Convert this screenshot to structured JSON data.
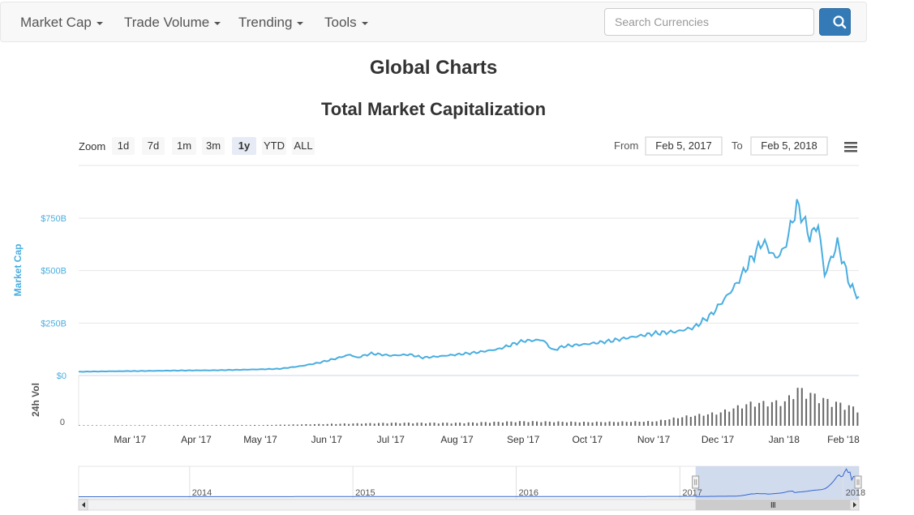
{
  "nav": {
    "items": [
      {
        "label": "Market Cap"
      },
      {
        "label": "Trade Volume"
      },
      {
        "label": "Trending"
      },
      {
        "label": "Tools"
      }
    ],
    "search_placeholder": "Search Currencies"
  },
  "page_title": "Global Charts",
  "controls": {
    "zoom_label": "Zoom",
    "zoom_buttons": [
      "1d",
      "7d",
      "1m",
      "3m",
      "1y",
      "YTD",
      "ALL"
    ],
    "active_zoom": "1y",
    "from_label": "From",
    "from_value": "Feb 5, 2017",
    "to_label": "To",
    "to_value": "Feb 5, 2018"
  },
  "colors": {
    "line": "#4aaee0",
    "volume": "#666666",
    "navigator_mask": "#c6d2ea",
    "grid": "#e6e6e6"
  },
  "chart_data": {
    "type": "line",
    "title": "Total Market Capitalization",
    "ylabel": "Market Cap",
    "volume_label": "24h Vol",
    "y_ticks": [
      "$0",
      "$250B",
      "$500B",
      "$750B"
    ],
    "y_tick_values": [
      0,
      250,
      500,
      750
    ],
    "ylim": [
      0,
      800
    ],
    "volume_zero_label": "0",
    "x_tick_labels": [
      "Mar '17",
      "Apr '17",
      "May '17",
      "Jun '17",
      "Jul '17",
      "Aug '17",
      "Sep '17",
      "Oct '17",
      "Nov '17",
      "Dec '17",
      "Jan '18",
      "Feb '18"
    ],
    "x_range": [
      "2017-02-05",
      "2018-02-05"
    ],
    "series": [
      {
        "unit": "billion USD",
        "x": [
          "2017-02-05",
          "2017-02-20",
          "2017-03-10",
          "2017-03-25",
          "2017-04-10",
          "2017-04-25",
          "2017-05-10",
          "2017-05-20",
          "2017-05-28",
          "2017-06-05",
          "2017-06-12",
          "2017-06-15",
          "2017-06-22",
          "2017-07-01",
          "2017-07-10",
          "2017-07-16",
          "2017-07-22",
          "2017-08-01",
          "2017-08-10",
          "2017-08-20",
          "2017-09-01",
          "2017-09-10",
          "2017-09-15",
          "2017-09-20",
          "2017-10-01",
          "2017-10-12",
          "2017-10-20",
          "2017-11-01",
          "2017-11-12",
          "2017-11-20",
          "2017-11-28",
          "2017-12-07",
          "2017-12-10",
          "2017-12-17",
          "2017-12-22",
          "2017-12-28",
          "2018-01-01",
          "2018-01-07",
          "2018-01-10",
          "2018-01-13",
          "2018-01-17",
          "2018-01-20",
          "2018-01-26",
          "2018-02-01",
          "2018-02-05"
        ],
        "y": [
          18,
          20,
          22,
          24,
          25,
          28,
          32,
          45,
          60,
          80,
          100,
          85,
          105,
          95,
          100,
          85,
          90,
          100,
          110,
          125,
          165,
          170,
          120,
          140,
          150,
          165,
          180,
          200,
          210,
          230,
          290,
          400,
          440,
          560,
          640,
          560,
          600,
          810,
          750,
          660,
          720,
          480,
          630,
          430,
          370
        ]
      }
    ],
    "volume": {
      "unit": "relative to period peak",
      "x": [
        "2017-02-05",
        "2017-05-01",
        "2017-06-01",
        "2017-07-01",
        "2017-08-01",
        "2017-09-01",
        "2017-10-01",
        "2017-11-01",
        "2017-11-15",
        "2017-12-01",
        "2017-12-15",
        "2018-01-01",
        "2018-01-07",
        "2018-01-20",
        "2018-02-05"
      ],
      "values": [
        0.01,
        0.02,
        0.05,
        0.08,
        0.08,
        0.12,
        0.1,
        0.12,
        0.25,
        0.35,
        0.6,
        0.65,
        1.0,
        0.7,
        0.45
      ]
    },
    "navigator": {
      "labels": [
        "2014",
        "2015",
        "2016",
        "2017",
        "2018"
      ],
      "range": [
        "2013-04-28",
        "2018-02-05"
      ],
      "selected": [
        "2017-02-05",
        "2018-02-05"
      ]
    }
  }
}
